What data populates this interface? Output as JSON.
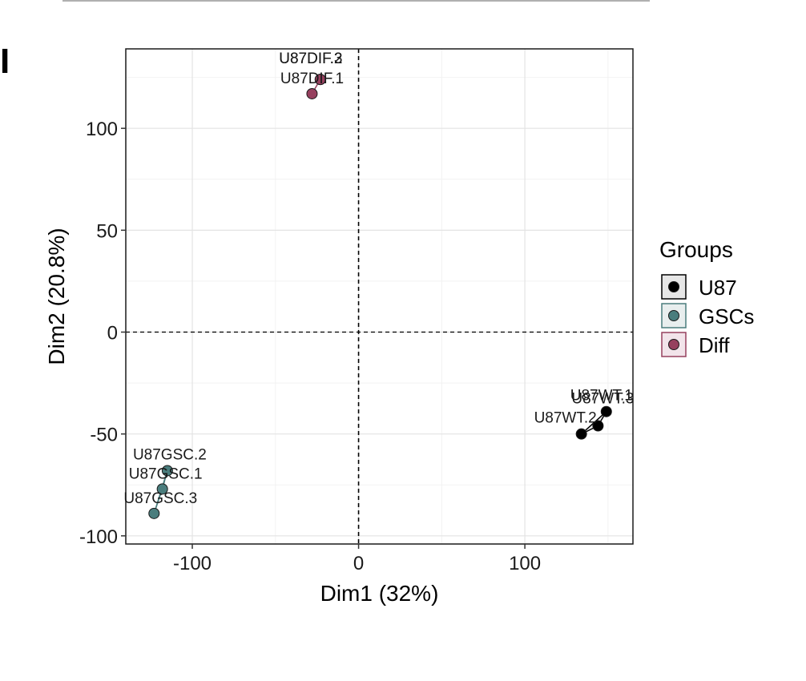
{
  "figure": {
    "panel_letter": "I"
  },
  "chart_data": {
    "type": "scatter",
    "title": "",
    "xlabel": "Dim1 (32%)",
    "ylabel": "Dim2 (20.8%)",
    "xlim": [
      -140,
      165
    ],
    "ylim": [
      -104,
      139
    ],
    "x_ticks": [
      -100,
      0,
      100
    ],
    "y_ticks": [
      -100,
      -50,
      0,
      50,
      100
    ],
    "grid": true,
    "reference_lines": {
      "x": 0,
      "y": 0,
      "style": "dashed"
    },
    "legend": {
      "title": "Groups",
      "position": "right"
    },
    "series": [
      {
        "name": "U87",
        "color": "#000000",
        "fill": "#e6e6e6",
        "points": [
          {
            "label": "U87WT.1",
            "x": 149,
            "y": -39
          },
          {
            "label": "U87WT.2",
            "x": 134,
            "y": -50
          },
          {
            "label": "U87WT.3",
            "x": 144,
            "y": -46
          }
        ]
      },
      {
        "name": "GSCs",
        "color": "#4a7d7d",
        "fill": "#e8eeee",
        "points": [
          {
            "label": "U87GSC.1",
            "x": -118,
            "y": -77
          },
          {
            "label": "U87GSC.2",
            "x": -115,
            "y": -68
          },
          {
            "label": "U87GSC.3",
            "x": -123,
            "y": -89
          }
        ]
      },
      {
        "name": "Diff",
        "color": "#96405e",
        "fill": "#f2e4ea",
        "points": [
          {
            "label": "U87DIF.1",
            "x": -28,
            "y": 117
          },
          {
            "label": "U87DIF.2",
            "x": -23,
            "y": 124
          },
          {
            "label": "U87DIF.3",
            "x": -23,
            "y": 124
          }
        ]
      }
    ]
  }
}
